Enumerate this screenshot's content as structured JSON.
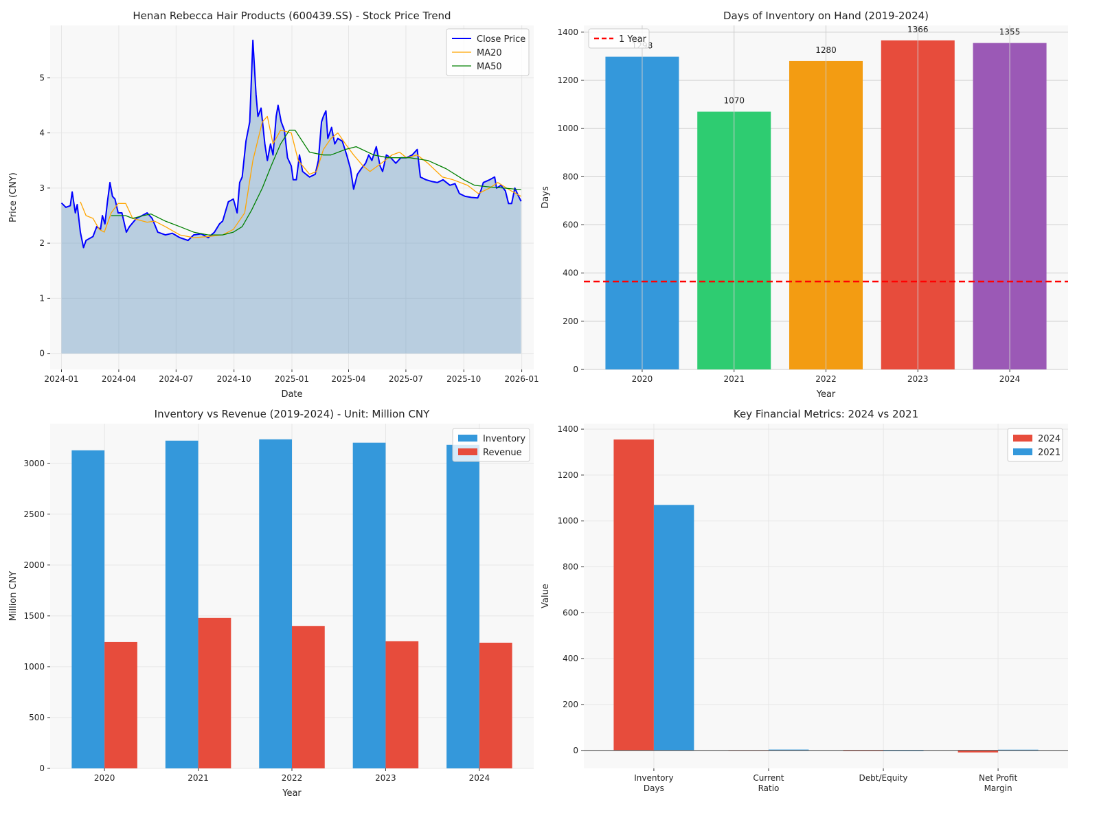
{
  "chart_data": [
    {
      "type": "line",
      "title": "Henan Rebecca Hair Products (600439.SS) - Stock Price Trend",
      "xlabel": "Date",
      "ylabel": "Price (CNY)",
      "xlim": [
        "2023-12-14",
        "2026-01-20"
      ],
      "ylim": [
        -0.29,
        5.95
      ],
      "xticks": [
        "2024-01",
        "2024-04",
        "2024-07",
        "2024-10",
        "2025-01",
        "2025-04",
        "2025-07",
        "2025-10",
        "2026-01"
      ],
      "yticks": [
        0,
        1,
        2,
        3,
        4,
        5
      ],
      "grid": true,
      "legend": "top-right",
      "fill_under_close": true,
      "series": [
        {
          "name": "Close Price",
          "color": "#0000ff",
          "points": [
            [
              "2024-01-01",
              2.73
            ],
            [
              "2024-01-08",
              2.65
            ],
            [
              "2024-01-15",
              2.68
            ],
            [
              "2024-01-18",
              2.93
            ],
            [
              "2024-01-23",
              2.55
            ],
            [
              "2024-01-26",
              2.7
            ],
            [
              "2024-01-31",
              2.2
            ],
            [
              "2024-02-05",
              1.92
            ],
            [
              "2024-02-09",
              2.05
            ],
            [
              "2024-02-20",
              2.12
            ],
            [
              "2024-02-26",
              2.3
            ],
            [
              "2024-03-03",
              2.25
            ],
            [
              "2024-03-06",
              2.5
            ],
            [
              "2024-03-10",
              2.35
            ],
            [
              "2024-03-14",
              2.75
            ],
            [
              "2024-03-18",
              3.1
            ],
            [
              "2024-03-22",
              2.85
            ],
            [
              "2024-03-26",
              2.8
            ],
            [
              "2024-03-31",
              2.55
            ],
            [
              "2024-04-06",
              2.55
            ],
            [
              "2024-04-13",
              2.2
            ],
            [
              "2024-04-18",
              2.3
            ],
            [
              "2024-04-29",
              2.45
            ],
            [
              "2024-05-08",
              2.5
            ],
            [
              "2024-05-16",
              2.55
            ],
            [
              "2024-05-24",
              2.45
            ],
            [
              "2024-06-02",
              2.2
            ],
            [
              "2024-06-14",
              2.15
            ],
            [
              "2024-06-25",
              2.18
            ],
            [
              "2024-07-07",
              2.1
            ],
            [
              "2024-07-20",
              2.05
            ],
            [
              "2024-07-29",
              2.15
            ],
            [
              "2024-08-10",
              2.17
            ],
            [
              "2024-08-21",
              2.1
            ],
            [
              "2024-08-31",
              2.2
            ],
            [
              "2024-09-08",
              2.35
            ],
            [
              "2024-09-13",
              2.4
            ],
            [
              "2024-09-22",
              2.75
            ],
            [
              "2024-09-30",
              2.8
            ],
            [
              "2024-10-06",
              2.55
            ],
            [
              "2024-10-10",
              3.1
            ],
            [
              "2024-10-14",
              3.2
            ],
            [
              "2024-10-20",
              3.85
            ],
            [
              "2024-10-26",
              4.2
            ],
            [
              "2024-10-31",
              5.68
            ],
            [
              "2024-11-05",
              4.7
            ],
            [
              "2024-11-08",
              4.3
            ],
            [
              "2024-11-13",
              4.45
            ],
            [
              "2024-11-19",
              3.8
            ],
            [
              "2024-11-23",
              3.5
            ],
            [
              "2024-11-28",
              3.8
            ],
            [
              "2024-12-02",
              3.6
            ],
            [
              "2024-12-07",
              4.3
            ],
            [
              "2024-12-10",
              4.5
            ],
            [
              "2024-12-15",
              4.2
            ],
            [
              "2024-12-20",
              4.05
            ],
            [
              "2024-12-25",
              3.55
            ],
            [
              "2024-12-31",
              3.4
            ],
            [
              "2025-01-03",
              3.15
            ],
            [
              "2025-01-08",
              3.15
            ],
            [
              "2025-01-13",
              3.6
            ],
            [
              "2025-01-18",
              3.3
            ],
            [
              "2025-01-29",
              3.2
            ],
            [
              "2025-02-07",
              3.25
            ],
            [
              "2025-02-12",
              3.5
            ],
            [
              "2025-02-17",
              4.2
            ],
            [
              "2025-02-20",
              4.3
            ],
            [
              "2025-02-24",
              4.4
            ],
            [
              "2025-02-27",
              3.9
            ],
            [
              "2025-03-05",
              4.1
            ],
            [
              "2025-03-10",
              3.8
            ],
            [
              "2025-03-15",
              3.9
            ],
            [
              "2025-03-22",
              3.85
            ],
            [
              "2025-03-29",
              3.6
            ],
            [
              "2025-04-04",
              3.35
            ],
            [
              "2025-04-09",
              2.98
            ],
            [
              "2025-04-15",
              3.25
            ],
            [
              "2025-04-21",
              3.35
            ],
            [
              "2025-04-28",
              3.45
            ],
            [
              "2025-05-03",
              3.6
            ],
            [
              "2025-05-08",
              3.5
            ],
            [
              "2025-05-15",
              3.75
            ],
            [
              "2025-05-21",
              3.4
            ],
            [
              "2025-05-25",
              3.3
            ],
            [
              "2025-05-31",
              3.6
            ],
            [
              "2025-06-07",
              3.55
            ],
            [
              "2025-06-15",
              3.45
            ],
            [
              "2025-06-23",
              3.55
            ],
            [
              "2025-07-02",
              3.55
            ],
            [
              "2025-07-11",
              3.6
            ],
            [
              "2025-07-19",
              3.7
            ],
            [
              "2025-07-24",
              3.2
            ],
            [
              "2025-08-02",
              3.15
            ],
            [
              "2025-08-11",
              3.12
            ],
            [
              "2025-08-20",
              3.1
            ],
            [
              "2025-08-29",
              3.15
            ],
            [
              "2025-09-09",
              3.05
            ],
            [
              "2025-09-17",
              3.08
            ],
            [
              "2025-09-24",
              2.9
            ],
            [
              "2025-10-03",
              2.85
            ],
            [
              "2025-10-13",
              2.83
            ],
            [
              "2025-10-23",
              2.82
            ],
            [
              "2025-10-28",
              2.95
            ],
            [
              "2025-11-01",
              3.1
            ],
            [
              "2025-11-11",
              3.15
            ],
            [
              "2025-11-19",
              3.2
            ],
            [
              "2025-11-22",
              3.0
            ],
            [
              "2025-11-29",
              3.05
            ],
            [
              "2025-12-06",
              2.95
            ],
            [
              "2025-12-11",
              2.72
            ],
            [
              "2025-12-16",
              2.72
            ],
            [
              "2025-12-21",
              3.0
            ],
            [
              "2025-12-27",
              2.85
            ],
            [
              "2025-12-31",
              2.76
            ]
          ]
        },
        {
          "name": "MA20",
          "color": "#ffa500",
          "points": [
            [
              "2024-01-31",
              2.75
            ],
            [
              "2024-02-09",
              2.5
            ],
            [
              "2024-02-20",
              2.45
            ],
            [
              "2024-03-01",
              2.25
            ],
            [
              "2024-03-09",
              2.2
            ],
            [
              "2024-03-20",
              2.55
            ],
            [
              "2024-03-31",
              2.72
            ],
            [
              "2024-04-12",
              2.72
            ],
            [
              "2024-04-23",
              2.45
            ],
            [
              "2024-05-16",
              2.38
            ],
            [
              "2024-05-28",
              2.4
            ],
            [
              "2024-06-14",
              2.3
            ],
            [
              "2024-07-07",
              2.15
            ],
            [
              "2024-07-29",
              2.1
            ],
            [
              "2024-08-21",
              2.12
            ],
            [
              "2024-09-13",
              2.15
            ],
            [
              "2024-09-30",
              2.25
            ],
            [
              "2024-10-18",
              2.55
            ],
            [
              "2024-10-31",
              3.5
            ],
            [
              "2024-11-15",
              4.2
            ],
            [
              "2024-11-23",
              4.3
            ],
            [
              "2024-12-02",
              3.8
            ],
            [
              "2024-12-14",
              4.05
            ],
            [
              "2024-12-31",
              4.0
            ],
            [
              "2025-01-11",
              3.5
            ],
            [
              "2025-01-29",
              3.25
            ],
            [
              "2025-02-09",
              3.3
            ],
            [
              "2025-02-20",
              3.7
            ],
            [
              "2025-03-04",
              3.9
            ],
            [
              "2025-03-15",
              4.0
            ],
            [
              "2025-03-27",
              3.8
            ],
            [
              "2025-04-09",
              3.6
            ],
            [
              "2025-04-24",
              3.4
            ],
            [
              "2025-05-05",
              3.3
            ],
            [
              "2025-05-23",
              3.45
            ],
            [
              "2025-06-09",
              3.6
            ],
            [
              "2025-06-21",
              3.65
            ],
            [
              "2025-07-02",
              3.55
            ],
            [
              "2025-07-19",
              3.6
            ],
            [
              "2025-08-05",
              3.45
            ],
            [
              "2025-08-28",
              3.2
            ],
            [
              "2025-09-14",
              3.15
            ],
            [
              "2025-10-07",
              3.05
            ],
            [
              "2025-10-24",
              2.9
            ],
            [
              "2025-11-11",
              3.0
            ],
            [
              "2025-11-24",
              3.1
            ],
            [
              "2025-12-15",
              2.95
            ],
            [
              "2025-12-31",
              2.85
            ]
          ]
        },
        {
          "name": "MA50",
          "color": "#008000",
          "points": [
            [
              "2024-03-20",
              2.5
            ],
            [
              "2024-04-12",
              2.5
            ],
            [
              "2024-04-23",
              2.45
            ],
            [
              "2024-05-10",
              2.5
            ],
            [
              "2024-05-22",
              2.53
            ],
            [
              "2024-06-14",
              2.4
            ],
            [
              "2024-07-07",
              2.3
            ],
            [
              "2024-07-29",
              2.2
            ],
            [
              "2024-08-21",
              2.15
            ],
            [
              "2024-09-13",
              2.15
            ],
            [
              "2024-09-30",
              2.2
            ],
            [
              "2024-10-14",
              2.3
            ],
            [
              "2024-10-29",
              2.6
            ],
            [
              "2024-11-15",
              3.0
            ],
            [
              "2024-11-29",
              3.4
            ],
            [
              "2024-12-14",
              3.8
            ],
            [
              "2024-12-28",
              4.05
            ],
            [
              "2025-01-06",
              4.05
            ],
            [
              "2025-01-29",
              3.65
            ],
            [
              "2025-02-20",
              3.6
            ],
            [
              "2025-03-04",
              3.6
            ],
            [
              "2025-03-27",
              3.7
            ],
            [
              "2025-04-13",
              3.75
            ],
            [
              "2025-05-11",
              3.6
            ],
            [
              "2025-06-03",
              3.55
            ],
            [
              "2025-07-07",
              3.55
            ],
            [
              "2025-08-05",
              3.5
            ],
            [
              "2025-09-03",
              3.35
            ],
            [
              "2025-10-01",
              3.15
            ],
            [
              "2025-10-18",
              3.05
            ],
            [
              "2025-11-11",
              3.02
            ],
            [
              "2025-12-04",
              3.0
            ],
            [
              "2025-12-31",
              2.97
            ]
          ]
        }
      ]
    },
    {
      "type": "bar",
      "title": "Days of Inventory on Hand (2019-2024)",
      "xlabel": "Year",
      "ylabel": "Days",
      "categories": [
        "2020",
        "2021",
        "2022",
        "2023",
        "2024"
      ],
      "values": [
        1298,
        1070,
        1280,
        1366,
        1355
      ],
      "data_labels": [
        "1298",
        "1070",
        "1280",
        "1366",
        "1355"
      ],
      "colors": [
        "#3498db",
        "#2ecc71",
        "#f39c12",
        "#e74c3c",
        "#9b59b6"
      ],
      "ylim": [
        0,
        1428
      ],
      "yticks": [
        0,
        200,
        400,
        600,
        800,
        1000,
        1200,
        1400
      ],
      "grid": true,
      "reference_line": {
        "name": "1 Year",
        "value": 365,
        "color": "#ff0000",
        "style": "dashed"
      },
      "legend": "top-left"
    },
    {
      "type": "bar",
      "title": "Inventory vs Revenue (2019-2024) - Unit: Million CNY",
      "xlabel": "Year",
      "ylabel": "Million CNY",
      "categories": [
        "2020",
        "2021",
        "2022",
        "2023",
        "2024"
      ],
      "series": [
        {
          "name": "Inventory",
          "color": "#3498db",
          "values": [
            3128,
            3223,
            3236,
            3203,
            3182
          ]
        },
        {
          "name": "Revenue",
          "color": "#e74c3c",
          "values": [
            1243,
            1480,
            1399,
            1250,
            1236
          ]
        }
      ],
      "ylim": [
        0,
        3390
      ],
      "yticks": [
        0,
        500,
        1000,
        1500,
        2000,
        2500,
        3000
      ],
      "grid": true,
      "legend": "top-right"
    },
    {
      "type": "bar",
      "title": "Key Financial Metrics: 2024 vs 2021",
      "xlabel": "",
      "ylabel": "Value",
      "categories": [
        "Inventory\nDays",
        "Current\nRatio",
        "Debt/Equity",
        "Net Profit\nMargin"
      ],
      "series": [
        {
          "name": "2024",
          "color": "#e74c3c",
          "values": [
            1355,
            1.5,
            0.3,
            -8.5
          ]
        },
        {
          "name": "2021",
          "color": "#3498db",
          "values": [
            1070,
            4.0,
            0.2,
            3.5
          ]
        }
      ],
      "ylim": [
        -78,
        1424
      ],
      "yticks": [
        0,
        200,
        400,
        600,
        800,
        1000,
        1200,
        1400
      ],
      "grid": true,
      "legend": "top-right"
    }
  ]
}
